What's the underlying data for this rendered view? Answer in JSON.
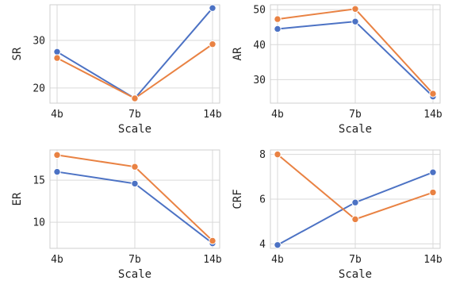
{
  "chart_data": [
    {
      "type": "line",
      "xlabel": "Scale",
      "ylabel": "SR",
      "categories": [
        "4b",
        "7b",
        "14b"
      ],
      "ylim": [
        16.8,
        37.5
      ],
      "yticks": [
        20,
        30
      ],
      "series": [
        {
          "color": "#4c72c4",
          "values": [
            27.6,
            17.8,
            36.8
          ]
        },
        {
          "color": "#e98243",
          "values": [
            26.3,
            17.8,
            29.2
          ]
        }
      ]
    },
    {
      "type": "line",
      "xlabel": "Scale",
      "ylabel": "AR",
      "categories": [
        "4b",
        "7b",
        "14b"
      ],
      "ylim": [
        23.3,
        51.4
      ],
      "yticks": [
        30,
        40,
        50
      ],
      "series": [
        {
          "color": "#4c72c4",
          "values": [
            44.5,
            46.6,
            25.2
          ]
        },
        {
          "color": "#e98243",
          "values": [
            47.3,
            50.2,
            26.0
          ]
        }
      ]
    },
    {
      "type": "line",
      "xlabel": "Scale",
      "ylabel": "ER",
      "categories": [
        "4b",
        "7b",
        "14b"
      ],
      "ylim": [
        6.9,
        18.6
      ],
      "yticks": [
        10,
        15
      ],
      "series": [
        {
          "color": "#4c72c4",
          "values": [
            16.0,
            14.6,
            7.5
          ]
        },
        {
          "color": "#e98243",
          "values": [
            18.0,
            16.6,
            7.8
          ]
        }
      ]
    },
    {
      "type": "line",
      "xlabel": "Scale",
      "ylabel": "CRF",
      "categories": [
        "4b",
        "7b",
        "14b"
      ],
      "ylim": [
        3.8,
        8.2
      ],
      "yticks": [
        4,
        6,
        8
      ],
      "series": [
        {
          "color": "#4c72c4",
          "values": [
            3.95,
            5.85,
            7.2
          ]
        },
        {
          "color": "#e98243",
          "values": [
            8.0,
            5.1,
            6.3
          ]
        }
      ]
    }
  ]
}
